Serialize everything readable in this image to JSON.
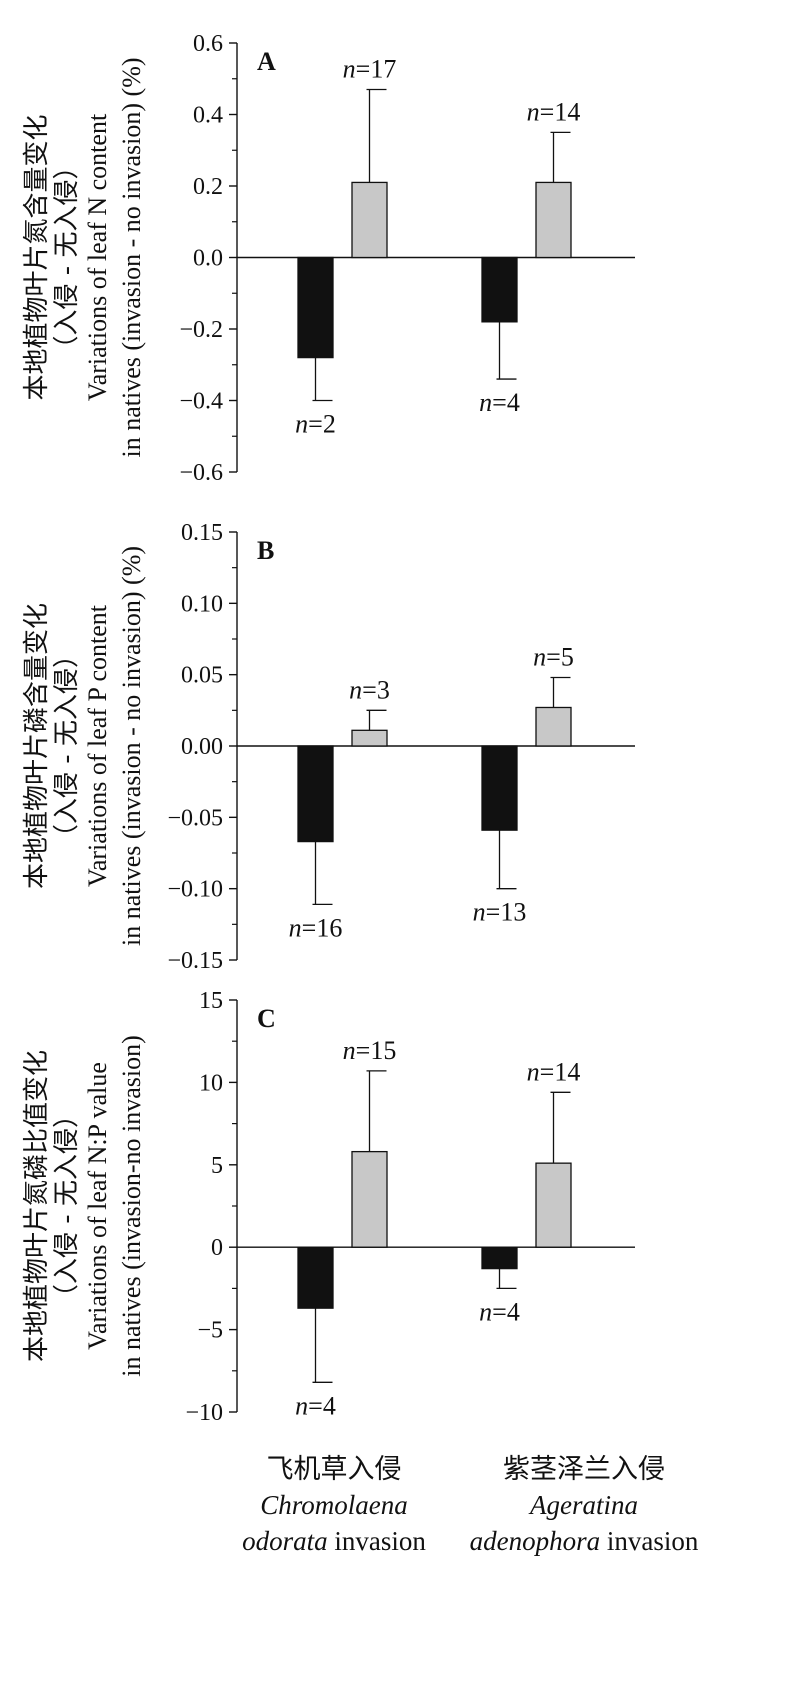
{
  "chart_data": [
    {
      "type": "bar",
      "panel": "A",
      "ylabel_zh": "本地植物叶片氮含量变化",
      "ylabel_zh_sub": "（入侵 - 无入侵）",
      "ylabel_en_1": "Variations of leaf N content",
      "ylabel_en_2": "in natives (invasion - no invasion) (%)",
      "ylim": [
        -0.6,
        0.6
      ],
      "yticks": [
        -0.6,
        -0.4,
        -0.2,
        0.0,
        0.2,
        0.4,
        0.6
      ],
      "ytick_labels": [
        "−0.6",
        "−0.4",
        "−0.2",
        "0.0",
        "0.2",
        "0.4",
        "0.6"
      ],
      "bars": [
        {
          "group": 0,
          "color": "#111111",
          "value": -0.28,
          "err": 0.12,
          "n_label": "=2"
        },
        {
          "group": 0,
          "color": "#c8c8c8",
          "value": 0.21,
          "err": 0.26,
          "n_label": "=17"
        },
        {
          "group": 1,
          "color": "#111111",
          "value": -0.18,
          "err": 0.16,
          "n_label": "=4"
        },
        {
          "group": 1,
          "color": "#c8c8c8",
          "value": 0.21,
          "err": 0.14,
          "n_label": "=14"
        }
      ]
    },
    {
      "type": "bar",
      "panel": "B",
      "ylabel_zh": "本地植物叶片磷含量变化",
      "ylabel_zh_sub": "（入侵 - 无入侵）",
      "ylabel_en_1": "Variations of leaf P content",
      "ylabel_en_2": "in natives (invasion - no invasion) (%)",
      "ylim": [
        -0.15,
        0.15
      ],
      "yticks": [
        -0.15,
        -0.1,
        -0.05,
        0.0,
        0.05,
        0.1,
        0.15
      ],
      "ytick_labels": [
        "−0.15",
        "−0.10",
        "−0.05",
        "0.00",
        "0.05",
        "0.10",
        "0.15"
      ],
      "bars": [
        {
          "group": 0,
          "color": "#111111",
          "value": -0.067,
          "err": 0.044,
          "n_label": "=16"
        },
        {
          "group": 0,
          "color": "#c8c8c8",
          "value": 0.011,
          "err": 0.014,
          "n_label": "=3"
        },
        {
          "group": 1,
          "color": "#111111",
          "value": -0.059,
          "err": 0.041,
          "n_label": "=13"
        },
        {
          "group": 1,
          "color": "#c8c8c8",
          "value": 0.027,
          "err": 0.021,
          "n_label": "=5"
        }
      ]
    },
    {
      "type": "bar",
      "panel": "C",
      "ylabel_zh": "本地植物叶片氮磷比值变化",
      "ylabel_zh_sub": "（入侵 - 无入侵）",
      "ylabel_en_1": "Variations of leaf N:P value",
      "ylabel_en_2": "in natives (invasion-no invasion)",
      "ylim": [
        -10,
        15
      ],
      "yticks": [
        -10,
        -5,
        0,
        5,
        10,
        15
      ],
      "ytick_labels": [
        "−10",
        "−5",
        "0",
        "5",
        "10",
        "15"
      ],
      "bars": [
        {
          "group": 0,
          "color": "#111111",
          "value": -3.7,
          "err": 4.5,
          "n_label": "=4"
        },
        {
          "group": 0,
          "color": "#c8c8c8",
          "value": 5.8,
          "err": 4.9,
          "n_label": "=15"
        },
        {
          "group": 1,
          "color": "#111111",
          "value": -1.3,
          "err": 1.2,
          "n_label": "=4"
        },
        {
          "group": 1,
          "color": "#c8c8c8",
          "value": 5.1,
          "err": 4.3,
          "n_label": "=14"
        }
      ]
    }
  ],
  "n_symbol": "n",
  "categories": [
    {
      "zh": "飞机草入侵",
      "species_1": "Chromolaena",
      "species_2": "odorata",
      "suffix": " invasion"
    },
    {
      "zh": "紫茎泽兰入侵",
      "species_1": "Ageratina",
      "species_2": "adenophora",
      "suffix": " invasion"
    }
  ],
  "colors": {
    "native_bar": "#111111",
    "invasive_bar": "#c8c8c8",
    "axis": "#111111"
  }
}
